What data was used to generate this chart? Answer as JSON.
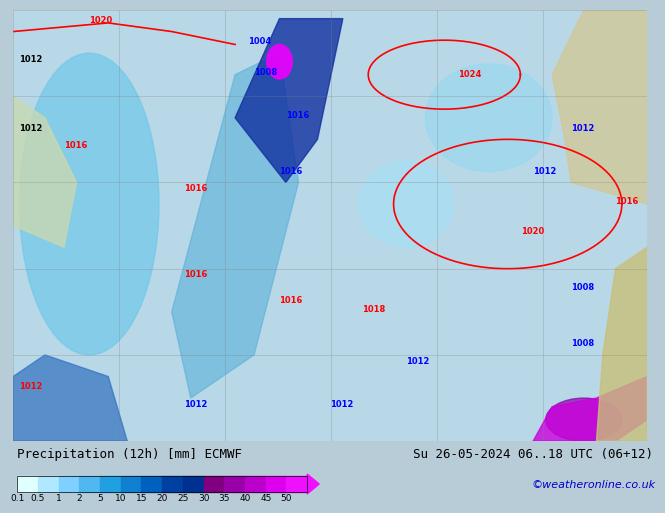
{
  "title_left": "Precipitation (12h) [mm] ECMWF",
  "title_right": "Su 26-05-2024 06..18 UTC (06+12)",
  "credit": "©weatheronline.co.uk",
  "colorbar_values": [
    0.1,
    0.5,
    1,
    2,
    5,
    10,
    15,
    20,
    25,
    30,
    35,
    40,
    45,
    50
  ],
  "colorbar_colors": [
    "#e0ffff",
    "#b0e8ff",
    "#80d0ff",
    "#50b8f0",
    "#20a0e0",
    "#1080d0",
    "#0060c0",
    "#0040a0",
    "#003090",
    "#800080",
    "#9900aa",
    "#bb00cc",
    "#dd00ee",
    "#ee10ff"
  ],
  "bg_color": "#d0e8f0",
  "map_bg": "#c8dce8",
  "label_color": "#000000",
  "title_fontsize": 9,
  "credit_color": "#0000cc",
  "credit_fontsize": 8
}
